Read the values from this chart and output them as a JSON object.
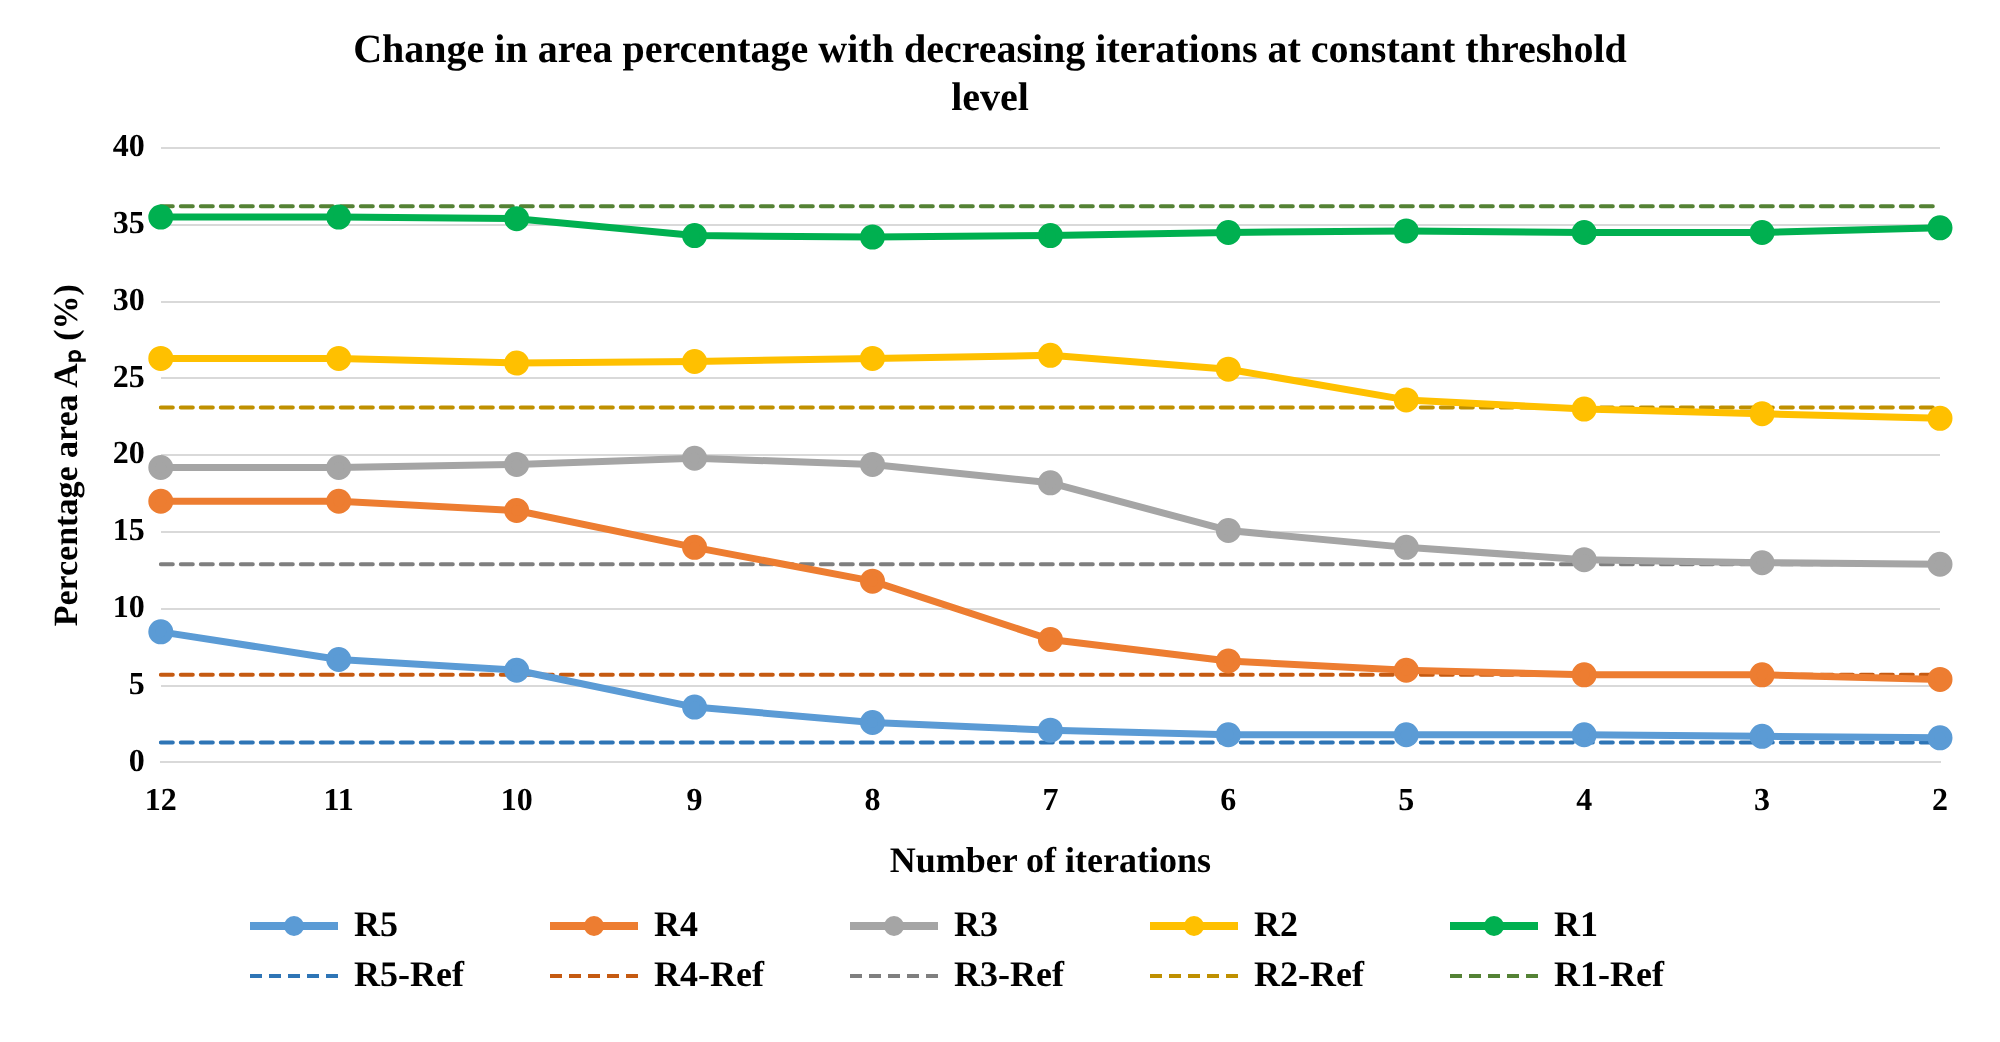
{
  "chart_data": {
    "type": "line",
    "title": "Change in area percentage with decreasing iterations at constant threshold level",
    "xlabel": "Number of iterations",
    "ylabel": "Percentage area Aₚ (%)",
    "categories": [
      "12",
      "11",
      "10",
      "9",
      "8",
      "7",
      "6",
      "5",
      "4",
      "3",
      "2"
    ],
    "ylim": [
      0,
      40
    ],
    "yticks": [
      0,
      5,
      10,
      15,
      20,
      25,
      30,
      35,
      40
    ],
    "grid": "y",
    "legend": "bottom",
    "marker": "circle",
    "line_style": "solid",
    "series": [
      {
        "name": "R5",
        "color": "#5b9bd5",
        "values": [
          8.5,
          6.7,
          6.0,
          3.6,
          2.6,
          2.1,
          1.8,
          1.8,
          1.8,
          1.7,
          1.6
        ]
      },
      {
        "name": "R4",
        "color": "#ed7d31",
        "values": [
          17.0,
          17.0,
          16.4,
          14.0,
          11.8,
          8.0,
          6.6,
          6.0,
          5.7,
          5.7,
          5.4
        ]
      },
      {
        "name": "R3",
        "color": "#a5a5a5",
        "values": [
          19.2,
          19.2,
          19.4,
          19.8,
          19.4,
          18.2,
          15.1,
          14.0,
          13.2,
          13.0,
          12.9
        ]
      },
      {
        "name": "R2",
        "color": "#ffc000",
        "values": [
          26.3,
          26.3,
          26.0,
          26.1,
          26.3,
          26.5,
          25.6,
          23.6,
          23.0,
          22.7,
          22.4
        ]
      },
      {
        "name": "R1",
        "color": "#00b050",
        "values": [
          35.5,
          35.5,
          35.4,
          34.3,
          34.2,
          34.3,
          34.5,
          34.6,
          34.5,
          34.5,
          34.8
        ]
      },
      {
        "name": "R5-Ref",
        "color": "#2e75b6",
        "line_style": "dashed",
        "marker": "none",
        "values": [
          1.3,
          1.3,
          1.3,
          1.3,
          1.3,
          1.3,
          1.3,
          1.3,
          1.3,
          1.3,
          1.3
        ]
      },
      {
        "name": "R4-Ref",
        "color": "#c55a11",
        "line_style": "dashed",
        "marker": "none",
        "values": [
          5.7,
          5.7,
          5.7,
          5.7,
          5.7,
          5.7,
          5.7,
          5.7,
          5.7,
          5.7,
          5.7
        ]
      },
      {
        "name": "R3-Ref",
        "color": "#7f7f7f",
        "line_style": "dashed",
        "marker": "none",
        "values": [
          12.9,
          12.9,
          12.9,
          12.9,
          12.9,
          12.9,
          12.9,
          12.9,
          12.9,
          12.9,
          12.9
        ]
      },
      {
        "name": "R2-Ref",
        "color": "#bf9000",
        "line_style": "dashed",
        "marker": "none",
        "values": [
          23.1,
          23.1,
          23.1,
          23.1,
          23.1,
          23.1,
          23.1,
          23.1,
          23.1,
          23.1,
          23.1
        ]
      },
      {
        "name": "R1-Ref",
        "color": "#548235",
        "line_style": "dashed",
        "marker": "none",
        "values": [
          36.2,
          36.2,
          36.2,
          36.2,
          36.2,
          36.2,
          36.2,
          36.2,
          36.2,
          36.2,
          36.2
        ]
      }
    ]
  }
}
